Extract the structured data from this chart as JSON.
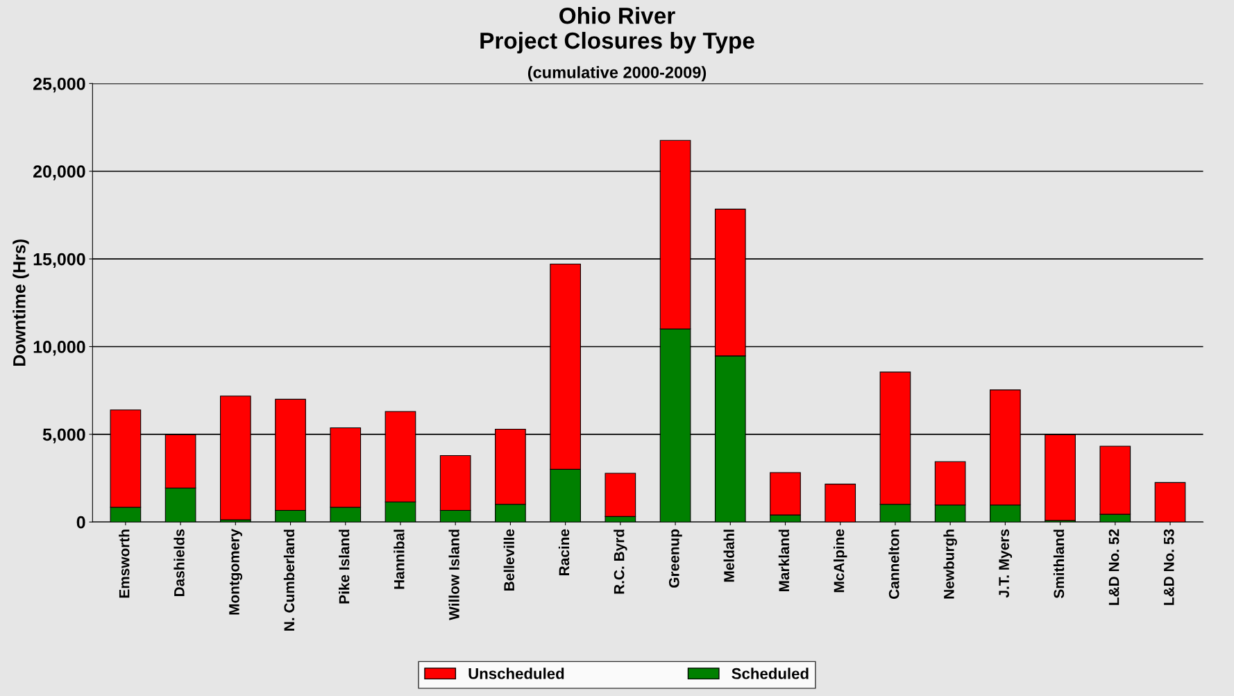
{
  "chart_data": {
    "type": "bar",
    "title": "Ohio River\nProject Closures by Type",
    "subtitle": "(cumulative 2000-2009)",
    "ylabel": "Downtime (Hrs)",
    "categories": [
      "Emsworth",
      "Dashields",
      "Montgomery",
      "N. Cumberland",
      "Pike Island",
      "Hannibal",
      "Willow Island",
      "Belleville",
      "Racine",
      "R.C. Byrd",
      "Greenup",
      "Meldahl",
      "Markland",
      "McAlpine",
      "Cannelton",
      "Newburgh",
      "J.T. Myers",
      "Smithland",
      "L&D No. 52",
      "L&D No. 53"
    ],
    "stacked": true,
    "series": [
      {
        "name": "Scheduled",
        "color": "#008000",
        "values": [
          840,
          1940,
          130,
          660,
          840,
          1150,
          660,
          1010,
          3000,
          310,
          11010,
          9470,
          400,
          0,
          1010,
          970,
          970,
          90,
          440,
          0
        ]
      },
      {
        "name": "Unscheduled",
        "color": "#ff0000",
        "values": [
          5550,
          3040,
          7050,
          6340,
          4530,
          5150,
          3130,
          4280,
          11710,
          2470,
          10750,
          8370,
          2420,
          2160,
          7540,
          2470,
          6560,
          4890,
          3880,
          2250
        ]
      }
    ],
    "ylim": [
      0,
      25000
    ],
    "yticks": [
      {
        "value": 0,
        "label": "0"
      },
      {
        "value": 5000,
        "label": "5,000"
      },
      {
        "value": 10000,
        "label": "10,000"
      },
      {
        "value": 15000,
        "label": "15,000"
      },
      {
        "value": 20000,
        "label": "20,000"
      },
      {
        "value": 25000,
        "label": "25,000"
      }
    ],
    "grid": "y",
    "legend": "bottom"
  }
}
